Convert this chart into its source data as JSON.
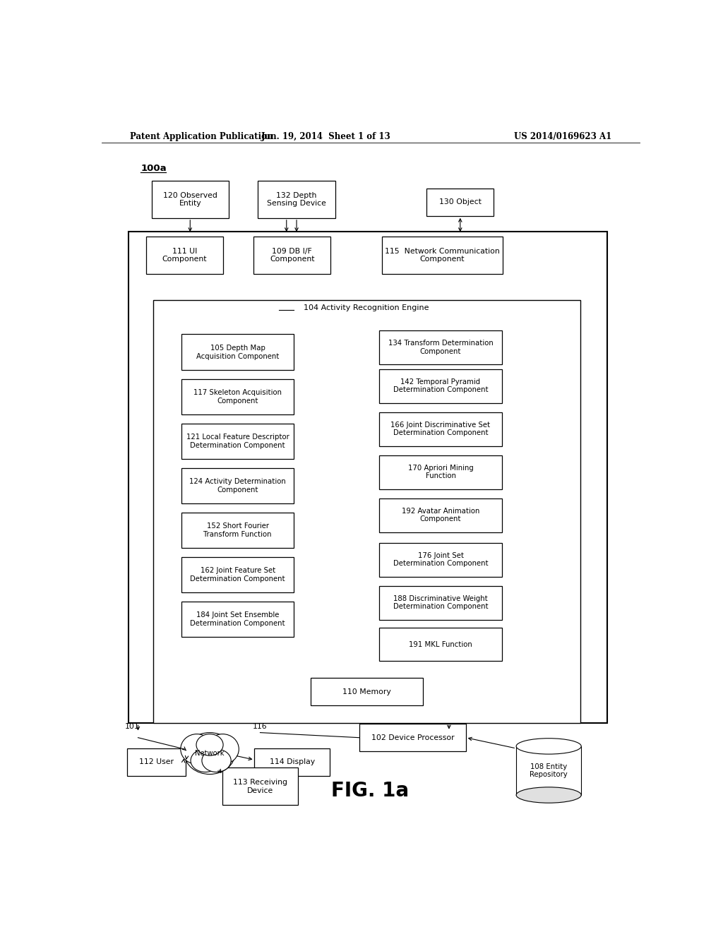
{
  "header_left": "Patent Application Publication",
  "header_mid": "Jun. 19, 2014  Sheet 1 of 13",
  "header_right": "US 2014/0169623 A1",
  "label_100a": "100a",
  "fig_label": "FIG. 1a",
  "bg_color": "#ffffff",
  "box_color": "#000000",
  "text_color": "#000000",
  "inner_label": "104 Activity Recognition Engine",
  "memory_label": "110 Memory"
}
